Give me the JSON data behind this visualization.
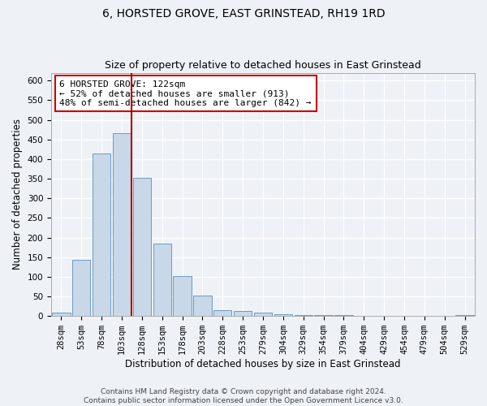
{
  "title": "6, HORSTED GROVE, EAST GRINSTEAD, RH19 1RD",
  "subtitle": "Size of property relative to detached houses in East Grinstead",
  "xlabel": "Distribution of detached houses by size in East Grinstead",
  "ylabel": "Number of detached properties",
  "bar_color": "#c8d8e8",
  "bar_edge_color": "#5a8fbf",
  "categories": [
    "28sqm",
    "53sqm",
    "78sqm",
    "103sqm",
    "128sqm",
    "153sqm",
    "178sqm",
    "203sqm",
    "228sqm",
    "253sqm",
    "279sqm",
    "304sqm",
    "329sqm",
    "354sqm",
    "379sqm",
    "404sqm",
    "429sqm",
    "454sqm",
    "479sqm",
    "504sqm",
    "529sqm"
  ],
  "values": [
    8,
    143,
    415,
    467,
    353,
    184,
    102,
    53,
    15,
    12,
    9,
    5,
    3,
    3,
    2,
    1,
    0,
    0,
    0,
    0,
    3
  ],
  "ylim": [
    0,
    620
  ],
  "yticks": [
    0,
    50,
    100,
    150,
    200,
    250,
    300,
    350,
    400,
    450,
    500,
    550,
    600
  ],
  "vline_x": 3.5,
  "vline_color": "#aa0000",
  "annotation_box_text": "6 HORSTED GROVE: 122sqm\n← 52% of detached houses are smaller (913)\n48% of semi-detached houses are larger (842) →",
  "footer_text": "Contains HM Land Registry data © Crown copyright and database right 2024.\nContains public sector information licensed under the Open Government Licence v3.0.",
  "background_color": "#eef2f7",
  "grid_color": "#ffffff",
  "title_fontsize": 10,
  "subtitle_fontsize": 9,
  "axis_label_fontsize": 8.5,
  "tick_fontsize": 7.5,
  "annotation_fontsize": 8,
  "footer_fontsize": 6.5
}
